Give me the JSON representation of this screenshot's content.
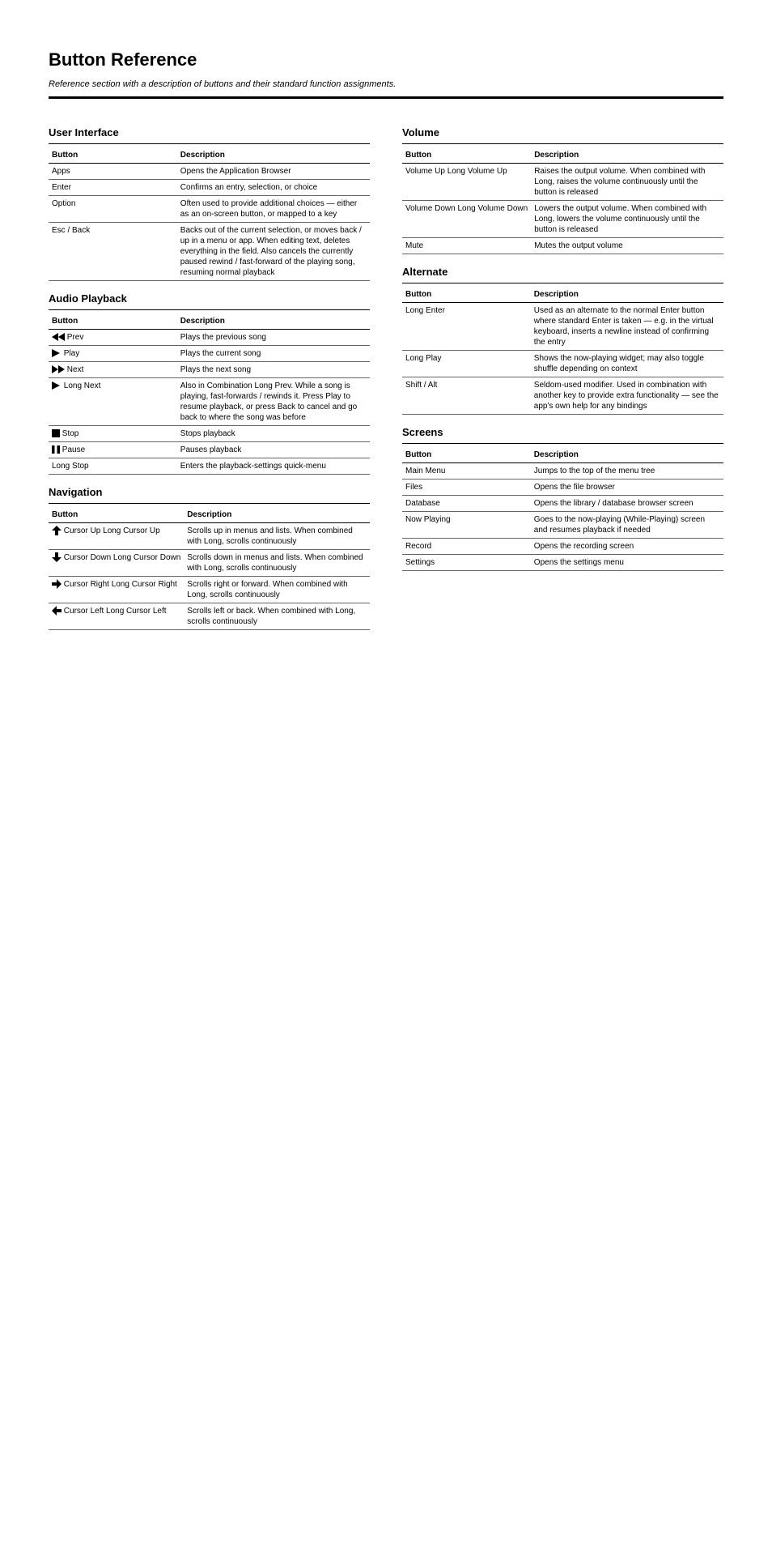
{
  "title": "Button Reference",
  "subtitle": "Reference section with a description of buttons and their standard function assignments.",
  "columns": {
    "left": [
      {
        "title": "User Interface",
        "header": [
          "Button",
          "Description"
        ],
        "rows": [
          {
            "key": "Apps",
            "desc": "Opens the Application Browser"
          },
          {
            "key": "Enter",
            "desc": "Confirms an entry, selection, or choice"
          },
          {
            "key": "Option",
            "desc": "Often used to provide additional choices — either as an on-screen button, or mapped to a key"
          },
          {
            "key": "Esc / Back",
            "desc": "Backs out of the current selection, or moves back / up in a menu or app. When editing text, deletes everything in the field. Also cancels the currently paused rewind / fast-forward of the playing song, resuming normal playback"
          }
        ]
      },
      {
        "title": "Audio Playback",
        "header": [
          "Button",
          "Description"
        ],
        "rows": [
          {
            "icon": "rewind",
            "key": "Prev",
            "desc": "Plays the previous song"
          },
          {
            "icon": "play",
            "key": "Play",
            "desc": "Plays the current song"
          },
          {
            "icon": "fastfwd",
            "key": "Next",
            "desc": "Plays the next song"
          },
          {
            "icon": "play",
            "key": "Long Next",
            "desc": "Also in Combination Long Prev. While a song is playing, fast-forwards / rewinds it. Press Play to resume playback, or press Back to cancel and go back to where the song was before"
          },
          {
            "icon": "stop",
            "key": "Stop",
            "desc": "Stops playback"
          },
          {
            "icon": "pause",
            "key": "Pause",
            "desc": "Pauses playback"
          },
          {
            "key": "Long Stop",
            "desc": "Enters the playback-settings quick-menu"
          }
        ]
      },
      {
        "title": "Navigation",
        "header": [
          "Button",
          "Description"
        ],
        "rows": [
          {
            "icon": "up",
            "key": "Cursor Up Long Cursor Up",
            "desc": "Scrolls up in menus and lists. When combined with Long, scrolls continuously"
          },
          {
            "icon": "down",
            "key": "Cursor Down Long Cursor Down",
            "desc": "Scrolls down in menus and lists. When combined with Long, scrolls continuously"
          },
          {
            "icon": "right",
            "key": "Cursor Right Long Cursor Right",
            "desc": "Scrolls right or forward. When combined with Long, scrolls continuously"
          },
          {
            "icon": "left",
            "key": "Cursor Left Long Cursor Left",
            "desc": "Scrolls left or back. When combined with Long, scrolls continuously"
          }
        ]
      }
    ],
    "right": [
      {
        "title": "Volume",
        "header": [
          "Button",
          "Description"
        ],
        "rows": [
          {
            "key": "Volume Up Long Volume Up",
            "desc": "Raises the output volume. When combined with Long, raises the volume continuously until the button is released"
          },
          {
            "key": "Volume Down Long Volume Down",
            "desc": "Lowers the output volume. When combined with Long, lowers the volume continuously until the button is released"
          },
          {
            "key": "Mute",
            "desc": "Mutes the output volume"
          }
        ]
      },
      {
        "title": "Alternate",
        "header": [
          "Button",
          "Description"
        ],
        "rows": [
          {
            "key": "Long Enter",
            "desc": "Used as an alternate to the normal Enter button where standard Enter is taken — e.g. in the virtual keyboard, inserts a newline instead of confirming the entry"
          },
          {
            "key": "Long Play",
            "desc": "Shows the now-playing widget; may also toggle shuffle depending on context"
          },
          {
            "key": "Shift / Alt",
            "desc": "Seldom-used modifier. Used in combination with another key to provide extra functionality — see the app's own help for any bindings"
          }
        ]
      },
      {
        "title": "Screens",
        "header": [
          "Button",
          "Description"
        ],
        "rows": [
          {
            "key": "Main Menu",
            "desc": "Jumps to the top of the menu tree"
          },
          {
            "key": "Files",
            "desc": "Opens the file browser"
          },
          {
            "key": "Database",
            "desc": "Opens the library / database browser screen"
          },
          {
            "key": "Now Playing",
            "desc": "Goes to the now-playing (While-Playing) screen and resumes playback if needed"
          },
          {
            "key": "Record",
            "desc": "Opens the recording screen"
          },
          {
            "key": "Settings",
            "desc": "Opens the settings menu"
          }
        ]
      }
    ]
  }
}
